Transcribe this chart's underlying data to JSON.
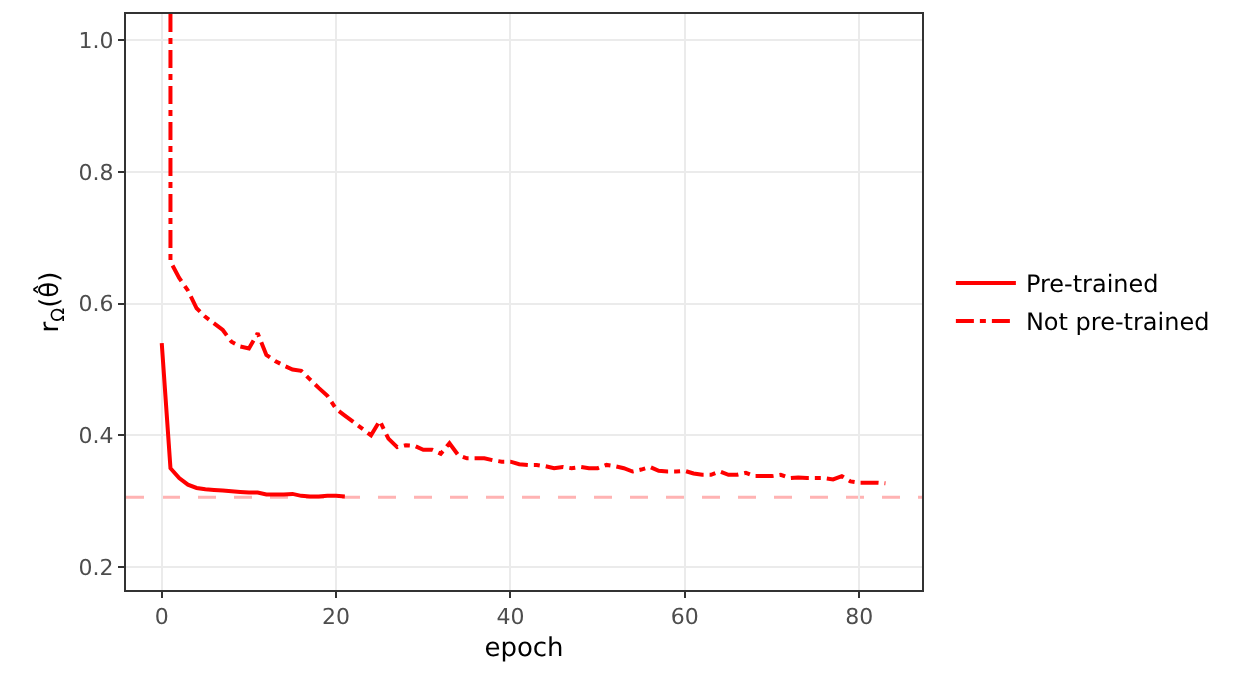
{
  "chart_data": {
    "type": "line",
    "xlabel": "epoch",
    "ylabel": "r$_{Ω}$(θ̂)",
    "xlim": [
      -4.1,
      87.2
    ],
    "xticks": [
      0,
      20,
      40,
      60,
      80
    ],
    "ylim": [
      0.165,
      1.04
    ],
    "yticks": [
      {
        "value": 0.2,
        "label": "0.2"
      },
      {
        "value": 0.4,
        "label": "0.4"
      },
      {
        "value": 0.6,
        "label": "0.6"
      },
      {
        "value": 0.8,
        "label": "0.8"
      },
      {
        "value": 1.0,
        "label": "1.0"
      }
    ],
    "grid": true,
    "legend": "right",
    "marker": "none",
    "ref_lines": [
      {
        "axis": "y",
        "value": 0.306,
        "color": "#ffb3b3",
        "line_style": "dashed"
      }
    ],
    "series": [
      {
        "name": "Pre-trained",
        "color": "#ff0000",
        "line_style": "solid",
        "x": [
          0,
          1,
          2,
          3,
          4,
          5,
          6,
          7,
          8,
          9,
          10,
          11,
          12,
          13,
          14,
          15,
          16,
          17,
          18,
          19,
          20,
          21
        ],
        "values": [
          0.54,
          0.35,
          0.335,
          0.325,
          0.32,
          0.318,
          0.317,
          0.316,
          0.315,
          0.314,
          0.313,
          0.313,
          0.31,
          0.31,
          0.31,
          0.311,
          0.308,
          0.307,
          0.307,
          0.308,
          0.308,
          0.307
        ]
      },
      {
        "name": "Not pre-trained",
        "color": "#ff0000",
        "line_style": "dashdot",
        "x": [
          1,
          1,
          2,
          3,
          4,
          5,
          6,
          7,
          8,
          9,
          10,
          11,
          12,
          13,
          14,
          15,
          16,
          17,
          18,
          19,
          20,
          21,
          22,
          23,
          24,
          25,
          26,
          27,
          28,
          29,
          30,
          31,
          32,
          33,
          34,
          35,
          36,
          37,
          38,
          39,
          40,
          41,
          42,
          43,
          44,
          45,
          46,
          47,
          48,
          49,
          50,
          51,
          52,
          53,
          54,
          55,
          56,
          57,
          58,
          59,
          60,
          61,
          62,
          63,
          64,
          65,
          66,
          67,
          68,
          69,
          70,
          71,
          72,
          73,
          74,
          75,
          76,
          77,
          78,
          79,
          80,
          81,
          82,
          83
        ],
        "values": [
          1.04,
          0.664,
          0.639,
          0.62,
          0.593,
          0.58,
          0.57,
          0.56,
          0.542,
          0.535,
          0.532,
          0.555,
          0.522,
          0.513,
          0.506,
          0.5,
          0.498,
          0.485,
          0.472,
          0.46,
          0.44,
          0.43,
          0.42,
          0.41,
          0.4,
          0.422,
          0.395,
          0.382,
          0.385,
          0.384,
          0.378,
          0.378,
          0.372,
          0.388,
          0.37,
          0.365,
          0.365,
          0.365,
          0.362,
          0.36,
          0.36,
          0.356,
          0.355,
          0.355,
          0.353,
          0.35,
          0.352,
          0.35,
          0.352,
          0.35,
          0.35,
          0.355,
          0.353,
          0.35,
          0.345,
          0.348,
          0.352,
          0.346,
          0.345,
          0.345,
          0.346,
          0.342,
          0.34,
          0.34,
          0.345,
          0.34,
          0.34,
          0.343,
          0.338,
          0.338,
          0.338,
          0.34,
          0.335,
          0.336,
          0.335,
          0.335,
          0.335,
          0.333,
          0.338,
          0.33,
          0.328,
          0.328,
          0.328,
          0.327
        ]
      }
    ]
  }
}
